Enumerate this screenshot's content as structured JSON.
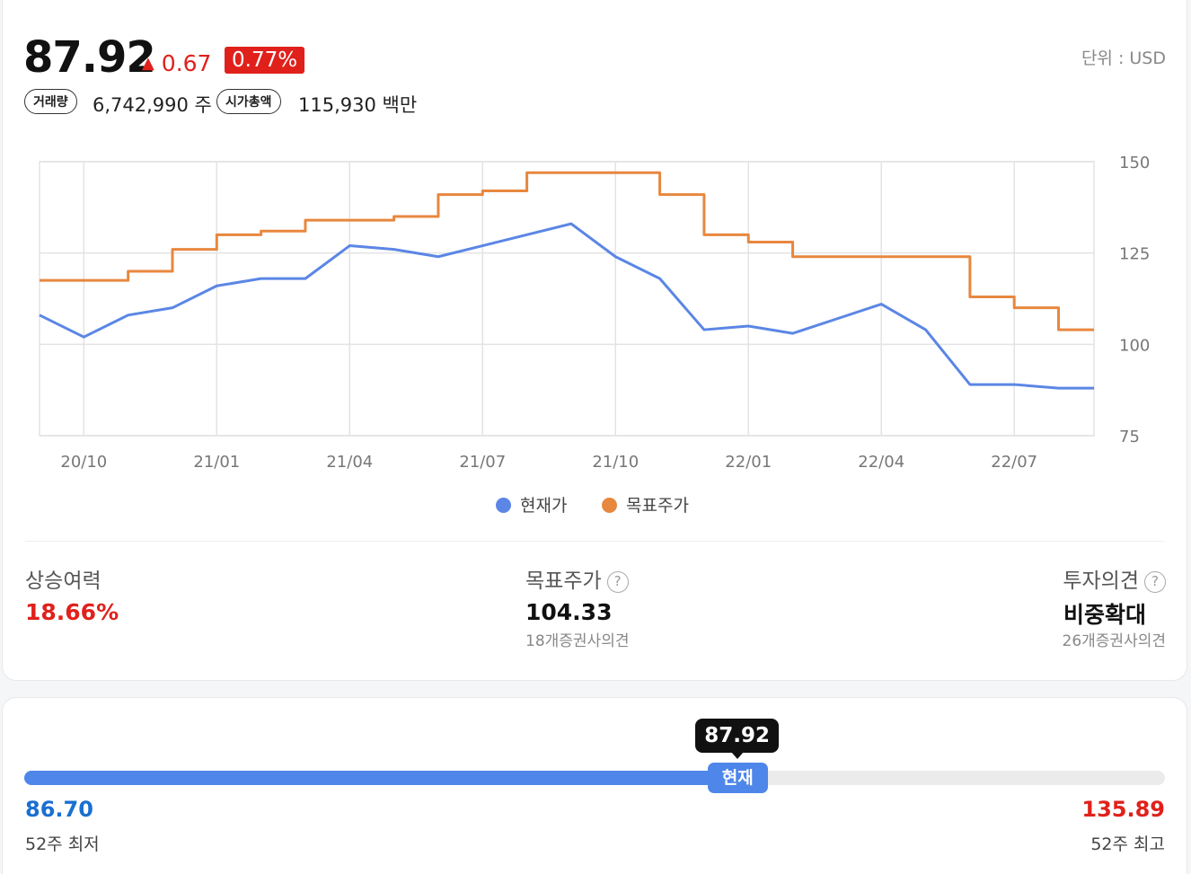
{
  "header": {
    "price": "87.92",
    "change": "0.67",
    "change_arrow": "▲",
    "change_pct": "0.77%",
    "unit": "단위 : USD",
    "volume_label": "거래량",
    "volume_value": "6,742,990 주",
    "mcap_label": "시가총액",
    "mcap_value": "115,930 백만"
  },
  "colors": {
    "current": "#5b86e5",
    "target": "#e8873f",
    "up": "#e0211b",
    "down": "#1a6fd1"
  },
  "chart_data": {
    "type": "line",
    "x_ticks": [
      "20/10",
      "21/01",
      "21/04",
      "21/07",
      "21/10",
      "22/01",
      "22/04",
      "22/07"
    ],
    "y_ticks": [
      "150",
      "125",
      "100",
      "75"
    ],
    "ylim": [
      75,
      150
    ],
    "series": [
      {
        "name": "현재가",
        "x": [
          "2020-09",
          "2020-10",
          "2020-11",
          "2020-12",
          "2021-01",
          "2021-02",
          "2021-03",
          "2021-04",
          "2021-05",
          "2021-06",
          "2021-07",
          "2021-08",
          "2021-09",
          "2021-10",
          "2021-11",
          "2021-12",
          "2022-01",
          "2022-02",
          "2022-03",
          "2022-04",
          "2022-05",
          "2022-06",
          "2022-07",
          "2022-08"
        ],
        "y": [
          108,
          102,
          108,
          110,
          116,
          118,
          118,
          127,
          126,
          124,
          127,
          130,
          133,
          124,
          118,
          104,
          105,
          103,
          107,
          111,
          104,
          89,
          89,
          88
        ]
      },
      {
        "name": "목표주가",
        "x": [
          "2020-09",
          "2020-10",
          "2020-11",
          "2020-12",
          "2021-01",
          "2021-02",
          "2021-03",
          "2021-04",
          "2021-05",
          "2021-06",
          "2021-07",
          "2021-08",
          "2021-09",
          "2021-10",
          "2021-11",
          "2021-12",
          "2022-01",
          "2022-02",
          "2022-03",
          "2022-04",
          "2022-05",
          "2022-06",
          "2022-07",
          "2022-08"
        ],
        "y": [
          117.5,
          117.5,
          120,
          126,
          130,
          131,
          134,
          134,
          135,
          141,
          142,
          147,
          147,
          147,
          141,
          130,
          128,
          124,
          124,
          124,
          124,
          113,
          110,
          104
        ]
      }
    ]
  },
  "stats": {
    "upside_label": "상승여력",
    "upside_value": "18.66%",
    "target_label": "목표주가",
    "target_value": "104.33",
    "target_sub": "18개증권사의견",
    "opinion_label": "투자의견",
    "opinion_value": "비중확대",
    "opinion_sub": "26개증권사의견",
    "help_glyph": "?"
  },
  "range52": {
    "low_value": "86.70",
    "low_label": "52주 최저",
    "high_value": "135.89",
    "high_label": "52주 최고",
    "current_value": "87.92",
    "current_label": "현재",
    "position_fraction": 0.625
  }
}
